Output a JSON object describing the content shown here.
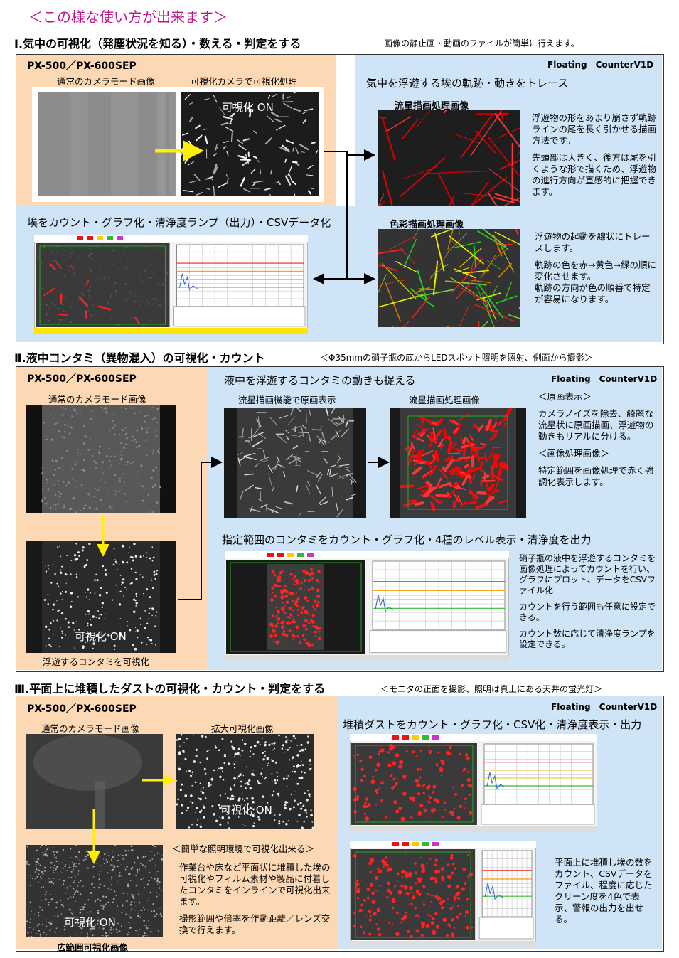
{
  "title": "＜この様な使い方が出来ます＞",
  "section1": {
    "heading": "Ⅰ.気中の可視化（発塵状況を知る）・数える・判定をする",
    "note": "画像の静止画・動画のファイルが簡単に行えます。",
    "device": "PX-500／PX-600SEP",
    "normal_label": "通常のカメラモード画像",
    "visual_label": "可視化カメラで可視化処理",
    "on_label": "可視化 ON",
    "count_caption": "埃をカウント・グラフ化・清浄度ランプ（出力）・CSVデータ化",
    "software": "Floating　CounterV1D",
    "trace_title": "気中を浮遊する埃の軌跡・動きをトレース",
    "meteor_title": "流星描画処理画像",
    "meteor_text": [
      "浮遊物の形をあまり崩さず軌跡ラインの尾を長く引かせる描画方法です。",
      "先頭部は大きく、後方は尾を引くような形で描くため、浮遊物の進行方向が直感的に把握できます。"
    ],
    "color_title": "色彩描画処理画像",
    "color_text": [
      "浮遊物の起動を線状にトレースします。",
      "軌跡の色を赤→黄色→緑の順に変化させます。",
      "軌跡の方向が色の順番で特定が容易になります。"
    ]
  },
  "section2": {
    "heading": "Ⅱ.液中コンタミ（異物混入）の可視化・カウント",
    "note": "＜Φ35mmの硝子瓶の底からLEDスポット照明を照射、側面から撮影＞",
    "device": "PX-500／PX-600SEP",
    "normal_label": "通常のカメラモード画像",
    "on_label": "可視化 ON",
    "visual_caption": "浮遊するコンタミを可視化",
    "title": "液中を浮遊するコンタミの動きも捉える",
    "software": "Floating　CounterV1D",
    "original_label": "流星描画機能で原画表示",
    "processed_label": "流星描画処理画像",
    "original_head": "＜原画表示＞",
    "original_text": "カメラノイズを除去、綺麗な流星状に原画描画、浮遊物の動きもリアルに分ける。",
    "processed_head": "＜画像処理画像＞",
    "processed_text": "特定範囲を画像処理で赤く強調化表示します。",
    "count_title": "指定範囲のコンタミをカウント・グラフ化・4種のレベル表示・清浄度を出力",
    "count_text": [
      "硝子瓶の液中を浮遊するコンタミを画像処理によってカウントを行い、グラフにプロット、データをCSVファイル化",
      "カウントを行う範囲も任意に設定できる。",
      "カウント数に応じて清浄度ランプを設定できる。"
    ]
  },
  "section3": {
    "heading": "Ⅲ.平面上に堆積したダストの可視化・カウント・判定をする",
    "note": "＜モニタの正面を撮影、照明は真上にある天井の蛍光灯＞",
    "device": "PX-500／PX-600SEP",
    "normal_label": "通常のカメラモード画像",
    "zoom_label": "拡大可視化画像",
    "on_label_zoom": "可視化 ON",
    "on_label_wide": "可視化 ON",
    "wide_caption": "広範囲可視化画像",
    "easy_head": "＜簡単な照明環境で可視化出来る＞",
    "easy_text": [
      "作業台や床など平面状に堆積した埃の可視化やフィルム素材や製品に付着したコンタミをインラインで可視化出来ます。",
      "撮影範囲や倍率を作動距離／レンズ交換で行えます。"
    ],
    "software": "Floating　CounterV1D",
    "title": "堆積ダストをカウント・グラフ化・CSV化・清浄度表示・出力",
    "text": "平面上に堆積し埃の数をカウント、CSVデータをファイル、程度に応じたクリーン度を4色で表示、警報の出力を出せる。"
  }
}
